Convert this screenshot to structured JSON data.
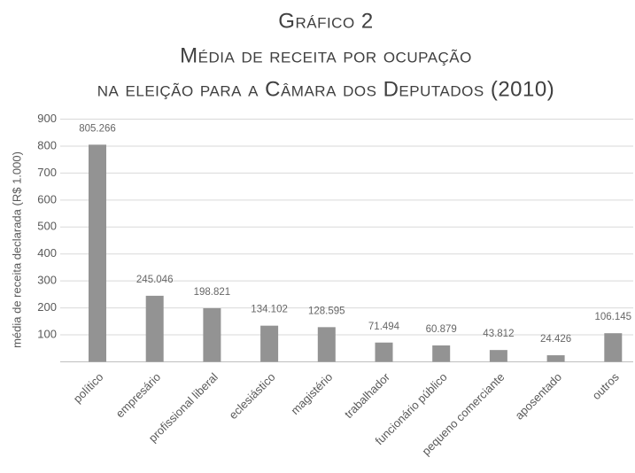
{
  "chart_data": {
    "type": "bar",
    "title": [
      "Gráfico 2",
      "Média de receita por ocupação",
      "na eleição para a Câmara dos Deputados (2010)"
    ],
    "y_label": "média de receita declarada (R$ 1.000)",
    "categories": [
      "político",
      "empresário",
      "profissional liberal",
      "eclesiástico",
      "magistério",
      "trabalhador",
      "funcionário público",
      "pequeno comerciante",
      "aposentado",
      "outros"
    ],
    "values": [
      805.266,
      245.046,
      198.821,
      134.102,
      128.595,
      71.494,
      60.879,
      43.812,
      24.426,
      106.145
    ],
    "color": "#939393",
    "ylim": [
      0,
      900
    ],
    "yticks": [
      100,
      200,
      300,
      400,
      500,
      600,
      700,
      800,
      900
    ],
    "grid": true
  }
}
